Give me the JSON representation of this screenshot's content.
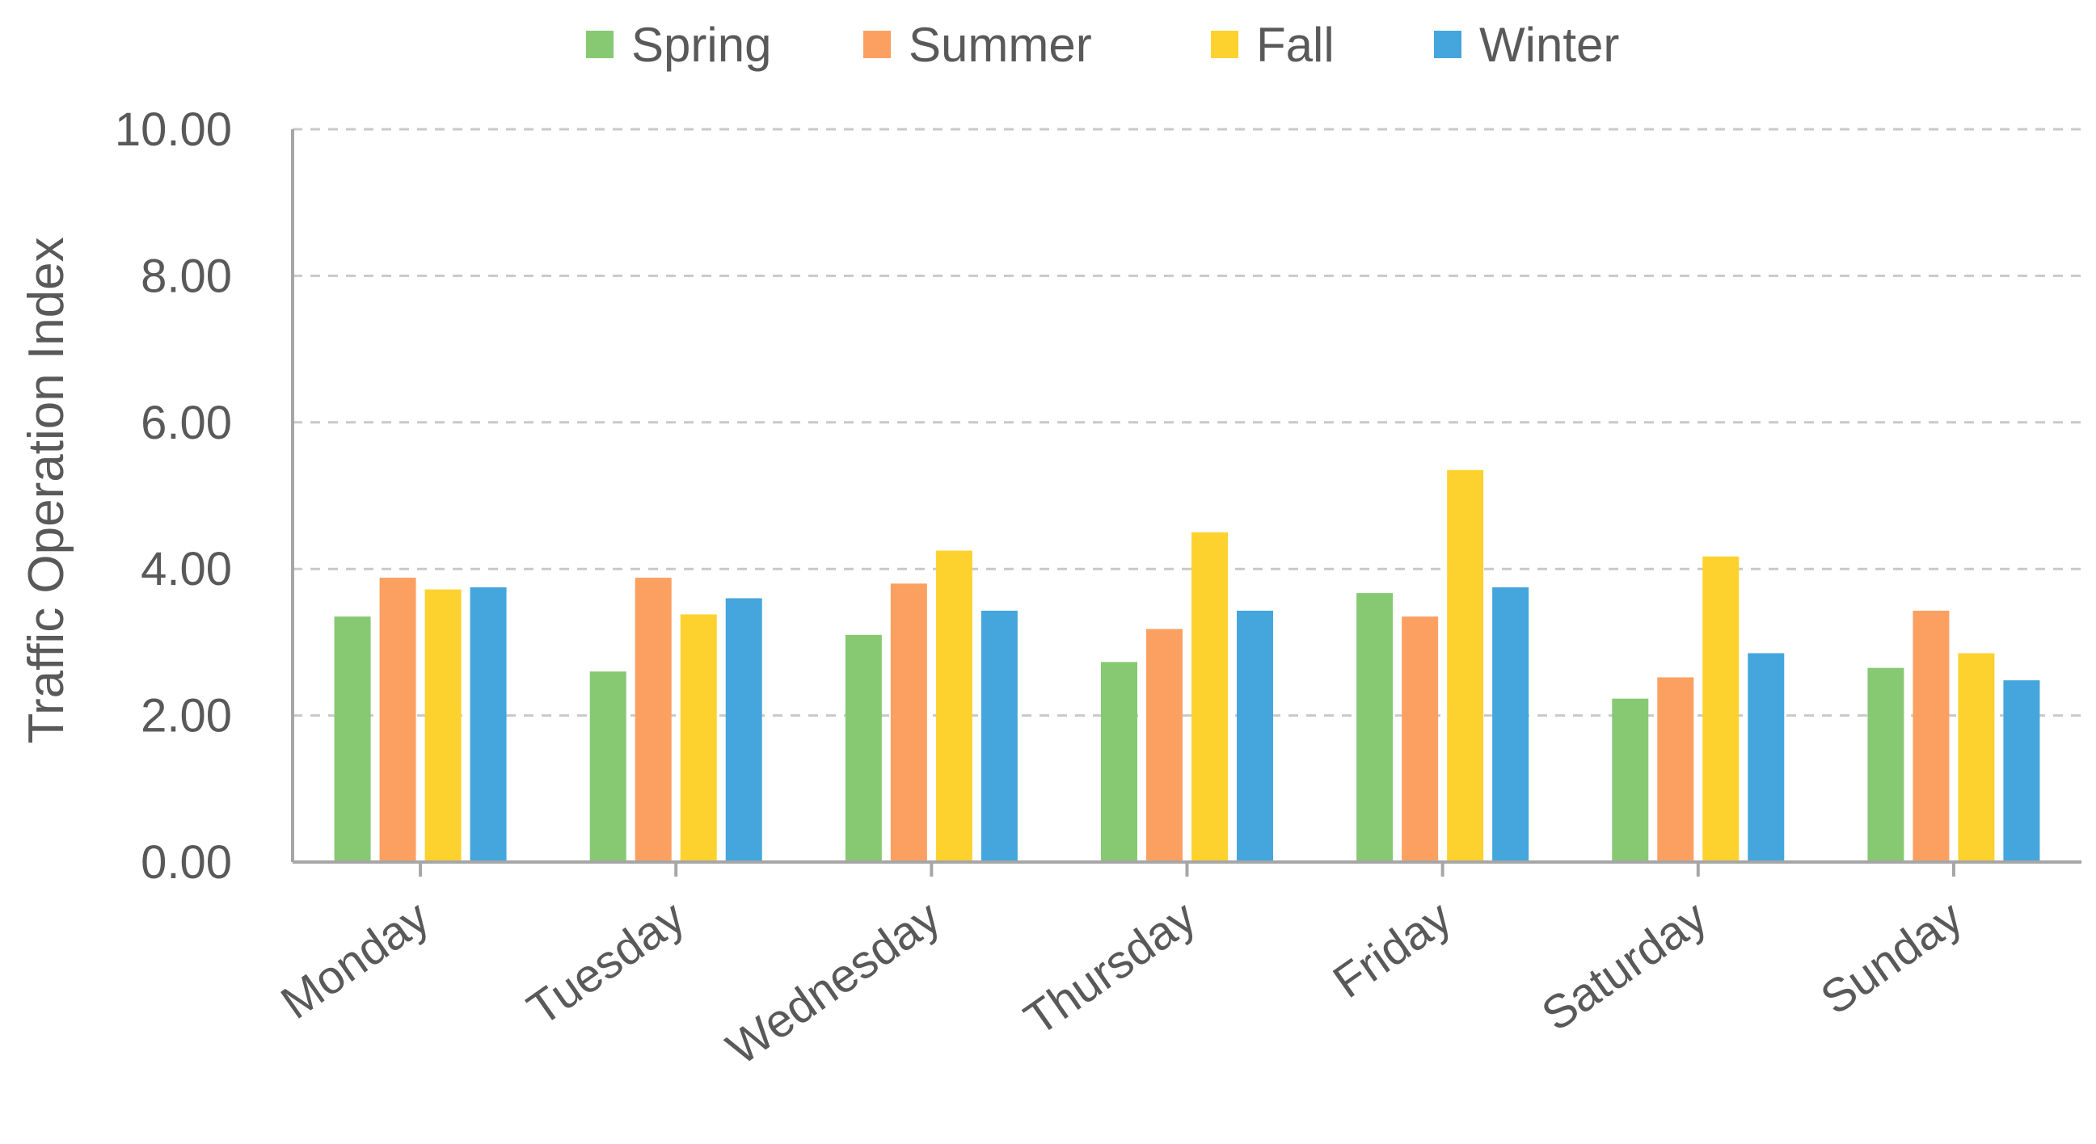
{
  "chart_data": {
    "type": "bar",
    "title": "",
    "xlabel": "",
    "ylabel": "Traffic Operation Index",
    "ylim": [
      0,
      10
    ],
    "y_ticks": [
      0,
      2,
      4,
      6,
      8,
      10
    ],
    "y_tick_labels": [
      "0.00",
      "2.00",
      "4.00",
      "6.00",
      "8.00",
      "10.00"
    ],
    "grid": true,
    "legend_position": "top",
    "categories": [
      "Monday",
      "Tuesday",
      "Wednesday",
      "Thursday",
      "Friday",
      "Saturday",
      "Sunday"
    ],
    "series": [
      {
        "name": "Spring",
        "color": "#86C972",
        "values": [
          3.35,
          2.6,
          3.1,
          2.73,
          3.67,
          2.23,
          2.65
        ]
      },
      {
        "name": "Summer",
        "color": "#FCA062",
        "values": [
          3.88,
          3.88,
          3.8,
          3.18,
          3.35,
          2.52,
          3.43
        ]
      },
      {
        "name": "Fall",
        "color": "#FDD22E",
        "values": [
          3.72,
          3.38,
          4.25,
          4.5,
          5.35,
          4.17,
          2.85
        ]
      },
      {
        "name": "Winter",
        "color": "#44A6DC",
        "values": [
          3.75,
          3.6,
          3.43,
          3.43,
          3.75,
          2.85,
          2.48
        ]
      }
    ]
  }
}
